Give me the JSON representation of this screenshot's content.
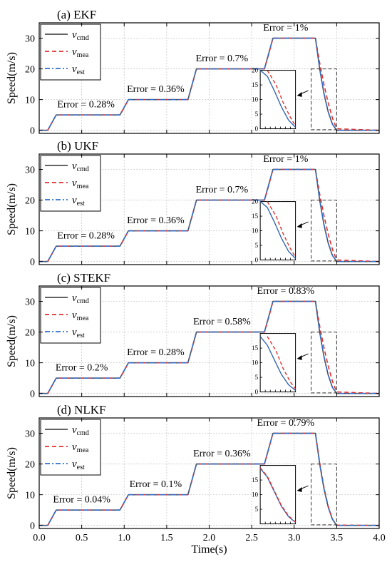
{
  "chart_data": [
    {
      "type": "line",
      "title": "(a) EKF",
      "xlabel": "",
      "ylabel": "Speed(m/s)",
      "xlim": [
        0,
        4
      ],
      "ylim": [
        -1,
        35
      ],
      "grid": true,
      "legend_position": "top-left",
      "xticks": [
        "0.0",
        "0.5",
        "1.0",
        "1.5",
        "2.0",
        "2.5",
        "3.0",
        "3.5",
        "4.0"
      ],
      "yticks": [
        "0",
        "10",
        "20",
        "30"
      ],
      "x": [
        0,
        0.1,
        0.2,
        0.95,
        1.0,
        1.05,
        1.75,
        1.8,
        1.85,
        2.65,
        2.7,
        2.75,
        3.25,
        3.3,
        3.35,
        3.4,
        3.45,
        3.5,
        4.0
      ],
      "series": [
        {
          "name": "v_cmd",
          "values": [
            0,
            0,
            5,
            5,
            7.5,
            10,
            10,
            15,
            20,
            20,
            25,
            30,
            30,
            20,
            12,
            6,
            2,
            0,
            0
          ]
        },
        {
          "name": "v_mea",
          "values": [
            0,
            0,
            5,
            5,
            7.4,
            10,
            10,
            14.8,
            20,
            20,
            24.7,
            30,
            30,
            22,
            15,
            9,
            4,
            0.5,
            0
          ]
        },
        {
          "name": "v_est",
          "values": [
            0,
            0,
            5,
            5,
            7.5,
            10,
            10,
            15,
            20,
            20,
            25,
            30,
            30,
            20.2,
            12.1,
            6.1,
            2,
            0,
            0
          ]
        }
      ],
      "annotations": [
        {
          "text": "Error = 0.28%",
          "x": 0.55,
          "y": 7.5
        },
        {
          "text": "Error = 0.36%",
          "x": 1.37,
          "y": 12.5
        },
        {
          "text": "Error = 0.7%",
          "x": 2.15,
          "y": 22.5
        },
        {
          "text": "Error = 1%",
          "x": 2.9,
          "y": 32.5
        }
      ],
      "inset": {
        "yticks": [
          "0",
          "5",
          "10",
          "15",
          "20"
        ],
        "cmd": [
          [
            0,
            20
          ],
          [
            0.2,
            18
          ],
          [
            0.4,
            13
          ],
          [
            0.6,
            7.5
          ],
          [
            0.8,
            3
          ],
          [
            1.0,
            0.5
          ]
        ],
        "mea": [
          [
            0.2,
            20
          ],
          [
            0.45,
            15
          ],
          [
            0.65,
            9
          ],
          [
            0.85,
            4
          ],
          [
            1.0,
            1
          ]
        ]
      }
    },
    {
      "type": "line",
      "title": "(b) UKF",
      "xlabel": "",
      "ylabel": "Speed(m/s)",
      "xlim": [
        0,
        4
      ],
      "ylim": [
        -1,
        35
      ],
      "grid": true,
      "legend_position": "top-left",
      "xticks": [
        "0.0",
        "0.5",
        "1.0",
        "1.5",
        "2.0",
        "2.5",
        "3.0",
        "3.5",
        "4.0"
      ],
      "yticks": [
        "0",
        "10",
        "20",
        "30"
      ],
      "x": [
        0,
        0.1,
        0.2,
        0.95,
        1.0,
        1.05,
        1.75,
        1.8,
        1.85,
        2.65,
        2.7,
        2.75,
        3.25,
        3.3,
        3.35,
        3.4,
        3.45,
        3.5,
        4.0
      ],
      "series": [
        {
          "name": "v_cmd",
          "values": [
            0,
            0,
            5,
            5,
            7.5,
            10,
            10,
            15,
            20,
            20,
            25,
            30,
            30,
            20,
            12,
            6,
            2,
            0,
            0
          ]
        },
        {
          "name": "v_mea",
          "values": [
            0,
            0,
            5,
            5,
            7.4,
            10,
            10,
            14.8,
            20,
            20,
            24.7,
            30,
            30,
            22,
            15,
            9,
            4,
            0.5,
            0
          ]
        },
        {
          "name": "v_est",
          "values": [
            0,
            0,
            5,
            5,
            7.5,
            10,
            10,
            15,
            20,
            20,
            25,
            30,
            30,
            20.2,
            12.1,
            6.1,
            2,
            0,
            0
          ]
        }
      ],
      "annotations": [
        {
          "text": "Error = 0.28%",
          "x": 0.55,
          "y": 7.5
        },
        {
          "text": "Error = 0.36%",
          "x": 1.37,
          "y": 12.5
        },
        {
          "text": "Error = 0.7%",
          "x": 2.15,
          "y": 22.5
        },
        {
          "text": "Error = 1%",
          "x": 2.9,
          "y": 32.5
        }
      ],
      "inset": {
        "yticks": [
          "0",
          "5",
          "10",
          "15",
          "20"
        ],
        "cmd": [
          [
            0,
            20
          ],
          [
            0.2,
            18
          ],
          [
            0.4,
            13
          ],
          [
            0.6,
            7.5
          ],
          [
            0.8,
            3
          ],
          [
            1.0,
            0.5
          ]
        ],
        "mea": [
          [
            0.2,
            20
          ],
          [
            0.45,
            15
          ],
          [
            0.65,
            9
          ],
          [
            0.85,
            4
          ],
          [
            1.0,
            1
          ]
        ]
      }
    },
    {
      "type": "line",
      "title": "(c) STEKF",
      "xlabel": "",
      "ylabel": "Speed(m/s)",
      "xlim": [
        0,
        4
      ],
      "ylim": [
        -1,
        35
      ],
      "grid": true,
      "legend_position": "top-left",
      "xticks": [
        "0.0",
        "0.5",
        "1.0",
        "1.5",
        "2.0",
        "2.5",
        "3.0",
        "3.5",
        "4.0"
      ],
      "yticks": [
        "0",
        "10",
        "20",
        "30"
      ],
      "x": [
        0,
        0.1,
        0.2,
        0.95,
        1.0,
        1.05,
        1.75,
        1.8,
        1.85,
        2.65,
        2.7,
        2.75,
        3.25,
        3.3,
        3.35,
        3.4,
        3.45,
        3.5,
        4.0
      ],
      "series": [
        {
          "name": "v_cmd",
          "values": [
            0,
            0,
            5,
            5,
            7.5,
            10,
            10,
            15,
            20,
            20,
            25,
            30,
            30,
            20,
            12,
            6,
            2,
            0,
            0
          ]
        },
        {
          "name": "v_mea",
          "values": [
            0,
            0,
            5,
            5,
            7.4,
            10,
            10,
            14.8,
            20,
            20,
            24.7,
            30,
            30,
            22,
            15,
            9,
            4,
            0.5,
            0
          ]
        },
        {
          "name": "v_est",
          "values": [
            0,
            0,
            5,
            5,
            7.5,
            10,
            10,
            15,
            20,
            20,
            25,
            30,
            30,
            20.2,
            12.1,
            6.1,
            2,
            0,
            0
          ]
        }
      ],
      "annotations": [
        {
          "text": "Error = 0.2%",
          "x": 0.5,
          "y": 7.5
        },
        {
          "text": "Error = 0.28%",
          "x": 1.37,
          "y": 12.5
        },
        {
          "text": "Error = 0.58%",
          "x": 2.15,
          "y": 22.5
        },
        {
          "text": "Error = 0.83%",
          "x": 2.9,
          "y": 32.5
        }
      ],
      "inset": {
        "yticks": [
          "0",
          "5",
          "10",
          "15"
        ],
        "cmd": [
          [
            0,
            19
          ],
          [
            0.2,
            16
          ],
          [
            0.4,
            11
          ],
          [
            0.6,
            6
          ],
          [
            0.8,
            2.5
          ],
          [
            1.0,
            0.5
          ]
        ],
        "mea": [
          [
            0.2,
            19
          ],
          [
            0.45,
            14
          ],
          [
            0.65,
            8
          ],
          [
            0.85,
            3.5
          ],
          [
            1.0,
            1
          ]
        ]
      }
    },
    {
      "type": "line",
      "title": "(d) NLKF",
      "xlabel": "Time(s)",
      "ylabel": "Speed(m/s)",
      "xlim": [
        0,
        4
      ],
      "ylim": [
        -1,
        35
      ],
      "grid": true,
      "legend_position": "top-left",
      "xticks": [
        "0.0",
        "0.5",
        "1.0",
        "1.5",
        "2.0",
        "2.5",
        "3.0",
        "3.5",
        "4.0"
      ],
      "yticks": [
        "0",
        "10",
        "20",
        "30"
      ],
      "x": [
        0,
        0.1,
        0.2,
        0.95,
        1.0,
        1.05,
        1.75,
        1.8,
        1.85,
        2.65,
        2.7,
        2.75,
        3.25,
        3.3,
        3.35,
        3.4,
        3.45,
        3.5,
        4.0
      ],
      "series": [
        {
          "name": "v_cmd",
          "values": [
            0,
            0,
            5,
            5,
            7.5,
            10,
            10,
            15,
            20,
            20,
            25,
            30,
            30,
            20,
            12,
            6,
            2,
            0,
            0
          ]
        },
        {
          "name": "v_mea",
          "values": [
            0,
            0,
            5,
            5,
            7.5,
            10,
            10,
            15,
            20,
            20,
            25,
            30,
            30,
            20.5,
            12.5,
            6.3,
            2.1,
            0.1,
            0
          ]
        },
        {
          "name": "v_est",
          "values": [
            0,
            0,
            5,
            5,
            7.5,
            10,
            10,
            15,
            20,
            20,
            25,
            30,
            30,
            20.1,
            12,
            6,
            2,
            0,
            0
          ]
        }
      ],
      "annotations": [
        {
          "text": "Error = 0.04%",
          "x": 0.5,
          "y": 7.5
        },
        {
          "text": "Error = 0.1%",
          "x": 1.37,
          "y": 12.5
        },
        {
          "text": "Error = 0.36%",
          "x": 2.15,
          "y": 22.5
        },
        {
          "text": "Error = 0.79%",
          "x": 2.9,
          "y": 32.5
        }
      ],
      "inset": {
        "yticks": [
          "5",
          "10",
          "15"
        ],
        "cmd": [
          [
            0,
            19
          ],
          [
            0.2,
            16
          ],
          [
            0.4,
            11
          ],
          [
            0.6,
            6
          ],
          [
            0.8,
            2.5
          ],
          [
            1.0,
            0.5
          ]
        ],
        "mea": [
          [
            0,
            19.2
          ],
          [
            0.2,
            16.3
          ],
          [
            0.4,
            11.3
          ],
          [
            0.6,
            6.3
          ],
          [
            0.8,
            2.8
          ],
          [
            1.0,
            0.6
          ]
        ]
      }
    }
  ],
  "legend_labels": [
    {
      "base": "v",
      "sub": "cmd"
    },
    {
      "base": "v",
      "sub": "mea"
    },
    {
      "base": "v",
      "sub": "est"
    }
  ],
  "colors": {
    "cmd": "#4d4d4d",
    "mea": "#e03030",
    "est": "#2f6fd0",
    "grid": "#c8c8c8",
    "axis": "#000000"
  }
}
